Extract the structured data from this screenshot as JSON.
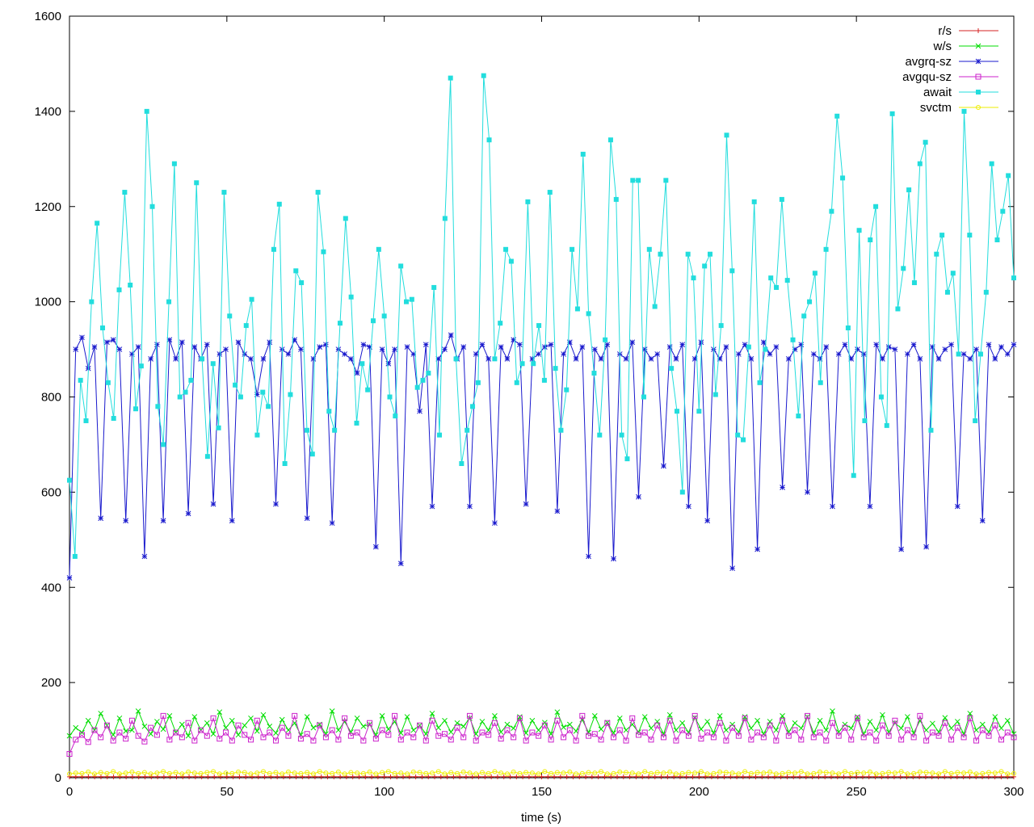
{
  "chart_data": {
    "type": "line",
    "title": "",
    "xlabel": "time (s)",
    "ylabel": "",
    "xlim": [
      0,
      300
    ],
    "ylim": [
      0,
      1600
    ],
    "x_ticks": [
      "0",
      "50",
      "100",
      "150",
      "200",
      "250",
      "300"
    ],
    "y_ticks": [
      "0",
      "200",
      "400",
      "600",
      "800",
      "1000",
      "1200",
      "1400",
      "1600"
    ],
    "grid": false,
    "legend_position": "top-right",
    "series": [
      {
        "name": "r/s",
        "color": "#d62020",
        "marker": "plus",
        "values": [
          2,
          2,
          2,
          2,
          2,
          2,
          2,
          2,
          2,
          2,
          2,
          2,
          2,
          2,
          2,
          2,
          2,
          2,
          2,
          2,
          2,
          2,
          2,
          2,
          2,
          2,
          2,
          2,
          2,
          2,
          2,
          2,
          2,
          2,
          2,
          2,
          2,
          2,
          2,
          2,
          2,
          2,
          2,
          2,
          2,
          2,
          2,
          2,
          2,
          2,
          2,
          2,
          2,
          2,
          2,
          2,
          2,
          2,
          2,
          2,
          2,
          2,
          2,
          2,
          2,
          2,
          2,
          2,
          2,
          2,
          2,
          2,
          2,
          2,
          2,
          2,
          2,
          2,
          2,
          2,
          2,
          2,
          2,
          2,
          2,
          2,
          2,
          2,
          2,
          2,
          2,
          2,
          2,
          2,
          2,
          2,
          2,
          2,
          2,
          2,
          2,
          2,
          2,
          2,
          2,
          2,
          2,
          2,
          2,
          2,
          2,
          2,
          2,
          2,
          2,
          2,
          2,
          2,
          2,
          2,
          2,
          2,
          2,
          2,
          2,
          2,
          2,
          2,
          2,
          2,
          2,
          2,
          2,
          2,
          2,
          2,
          2,
          2,
          2,
          2,
          2,
          2,
          2,
          2,
          2,
          2,
          2,
          2,
          2,
          2,
          2
        ]
      },
      {
        "name": "w/s",
        "color": "#00dd00",
        "marker": "x",
        "values": [
          88,
          105,
          95,
          120,
          100,
          135,
          110,
          90,
          125,
          98,
          100,
          140,
          108,
          92,
          118,
          102,
          130,
          95,
          112,
          88,
          128,
          100,
          115,
          92,
          138,
          105,
          120,
          90,
          110,
          125,
          98,
          132,
          108,
          94,
          122,
          100,
          115,
          90,
          128,
          105,
          112,
          92,
          140,
          100,
          118,
          96,
          125,
          108,
          112,
          90,
          130,
          102,
          118,
          94,
          128,
          100,
          110,
          92,
          135,
          105,
          120,
          96,
          115,
          108,
          125,
          92,
          118,
          100,
          130,
          96,
          112,
          104,
          128,
          94,
          120,
          100,
          116,
          92,
          138,
          106,
          112,
          98,
          122,
          95,
          130,
          102,
          116,
          94,
          125,
          100,
          112,
          96,
          128,
          104,
          118,
          92,
          132,
          100,
          115,
          95,
          126,
          102,
          118,
          94,
          130,
          100,
          112,
          96,
          128,
          104,
          120,
          92,
          118,
          100,
          130,
          96,
          115,
          104,
          128,
          94,
          120,
          100,
          140,
          96,
          112,
          104,
          128,
          92,
          118,
          100,
          132,
          96,
          115,
          104,
          128,
          94,
          120,
          100,
          114,
          96,
          126,
          104,
          118,
          92,
          135,
          100,
          112,
          96,
          128,
          104,
          120,
          92
        ]
      },
      {
        "name": "avgrq-sz",
        "color": "#1a1acd",
        "marker": "star",
        "values": [
          420,
          900,
          925,
          860,
          905,
          545,
          915,
          920,
          900,
          540,
          890,
          905,
          465,
          880,
          910,
          540,
          920,
          880,
          915,
          555,
          905,
          880,
          910,
          575,
          890,
          900,
          540,
          915,
          890,
          880,
          805,
          880,
          915,
          575,
          900,
          890,
          920,
          900,
          545,
          880,
          905,
          910,
          535,
          900,
          890,
          880,
          850,
          910,
          905,
          485,
          900,
          870,
          900,
          450,
          905,
          890,
          770,
          910,
          570,
          880,
          900,
          930,
          880,
          905,
          570,
          890,
          910,
          880,
          535,
          905,
          880,
          920,
          910,
          575,
          880,
          890,
          905,
          910,
          560,
          890,
          915,
          880,
          905,
          465,
          900,
          880,
          910,
          460,
          890,
          880,
          915,
          590,
          900,
          880,
          890,
          655,
          905,
          880,
          910,
          570,
          880,
          915,
          540,
          900,
          880,
          905,
          440,
          890,
          910,
          880,
          480,
          915,
          890,
          905,
          610,
          880,
          900,
          910,
          600,
          890,
          880,
          905,
          570,
          890,
          910,
          880,
          900,
          890,
          570,
          910,
          880,
          905,
          900,
          480,
          890,
          910,
          880,
          485,
          905,
          880,
          900,
          910,
          570,
          890,
          880,
          900,
          540,
          910,
          880,
          905,
          890,
          910
        ]
      },
      {
        "name": "avgqu-sz",
        "color": "#cc22cc",
        "marker": "square",
        "values": [
          50,
          80,
          90,
          75,
          100,
          85,
          110,
          78,
          95,
          82,
          120,
          88,
          76,
          105,
          90,
          130,
          80,
          95,
          85,
          115,
          78,
          100,
          88,
          125,
          82,
          95,
          78,
          110,
          90,
          80,
          120,
          85,
          95,
          78,
          105,
          88,
          130,
          82,
          92,
          78,
          110,
          85,
          100,
          80,
          125,
          88,
          95,
          78,
          115,
          82,
          100,
          90,
          130,
          80,
          95,
          85,
          110,
          78,
          120,
          88,
          92,
          80,
          105,
          85,
          130,
          78,
          95,
          90,
          115,
          82,
          100,
          85,
          125,
          78,
          95,
          88,
          110,
          80,
          120,
          85,
          100,
          78,
          130,
          88,
          92,
          80,
          115,
          85,
          100,
          78,
          125,
          90,
          95,
          80,
          110,
          85,
          120,
          78,
          100,
          88,
          130,
          82,
          95,
          85,
          115,
          78,
          105,
          88,
          125,
          80,
          95,
          85,
          110,
          78,
          120,
          88,
          100,
          80,
          130,
          85,
          95,
          78,
          115,
          88,
          105,
          80,
          125,
          85,
          95,
          78,
          110,
          88,
          120,
          80,
          100,
          85,
          130,
          78,
          95,
          88,
          115,
          80,
          105,
          85,
          125,
          78,
          100,
          88,
          110,
          80,
          95,
          85
        ]
      },
      {
        "name": "await",
        "color": "#22dddd",
        "marker": "filled-square",
        "values": [
          625,
          465,
          835,
          750,
          1000,
          1165,
          945,
          830,
          755,
          1025,
          1230,
          1035,
          775,
          865,
          1400,
          1200,
          780,
          700,
          1000,
          1290,
          800,
          810,
          835,
          1250,
          880,
          675,
          870,
          735,
          1230,
          970,
          825,
          800,
          950,
          1005,
          720,
          810,
          780,
          1110,
          1205,
          660,
          805,
          1065,
          1040,
          730,
          680,
          1230,
          1105,
          770,
          730,
          955,
          1175,
          1010,
          745,
          870,
          815,
          960,
          1110,
          970,
          800,
          760,
          1075,
          1000,
          1005,
          820,
          835,
          850,
          1030,
          720,
          1175,
          1470,
          880,
          660,
          730,
          780,
          830,
          1475,
          1340,
          880,
          955,
          1110,
          1085,
          830,
          870,
          1210,
          870,
          950,
          835,
          1230,
          860,
          730,
          815,
          1110,
          985,
          1310,
          975,
          850,
          720,
          920,
          1340,
          1215,
          720,
          670,
          1255,
          1255,
          800,
          1110,
          990,
          1100,
          1255,
          860,
          770,
          600,
          1100,
          1050,
          770,
          1075,
          1100,
          805,
          950,
          1350,
          1065,
          720,
          710,
          905,
          1210,
          830,
          900,
          1050,
          1030,
          1215,
          1045,
          920,
          760,
          970,
          1000,
          1060,
          830,
          1110,
          1190,
          1390,
          1260,
          945,
          635,
          1150,
          750,
          1130,
          1200,
          800,
          740,
          1395,
          985,
          1070,
          1235,
          1040,
          1290,
          1335,
          730,
          1100,
          1140,
          1020,
          1060,
          890,
          1400,
          1140,
          750,
          890,
          1020,
          1290,
          1130,
          1190,
          1265,
          1050
        ]
      },
      {
        "name": "svctm",
        "color": "#eeee00",
        "marker": "circle",
        "values": [
          8,
          10,
          9,
          12,
          8,
          11,
          9,
          13,
          8,
          10,
          12,
          9,
          11,
          8,
          10,
          13,
          9,
          11,
          8,
          12,
          10,
          9,
          11,
          13,
          8,
          10,
          9,
          12,
          11,
          8,
          10,
          13,
          9,
          11,
          8,
          12,
          10,
          9,
          11,
          8,
          13,
          10,
          9,
          12,
          8,
          11,
          10,
          9,
          12,
          8,
          11,
          13,
          9,
          10,
          8,
          12,
          11,
          9,
          10,
          13,
          8,
          11,
          9,
          12,
          10,
          8,
          11,
          9,
          13,
          10,
          8,
          12,
          9,
          11,
          10,
          8,
          13,
          9,
          11,
          10,
          12,
          8,
          9,
          11,
          10,
          13,
          8,
          9,
          12,
          11,
          10,
          8,
          13,
          9,
          11,
          10,
          12,
          8,
          9,
          11,
          10,
          13,
          8,
          9,
          12,
          11,
          10,
          8,
          13,
          9,
          11,
          10,
          12,
          8,
          9,
          11,
          10,
          13,
          8,
          9,
          12,
          11,
          10,
          8,
          13,
          9,
          11,
          10,
          12,
          8,
          9,
          11,
          10,
          13,
          8,
          9,
          12,
          11,
          10,
          8,
          13,
          9,
          11,
          10,
          12,
          8,
          9,
          11,
          10,
          13,
          8,
          9
        ]
      }
    ]
  }
}
